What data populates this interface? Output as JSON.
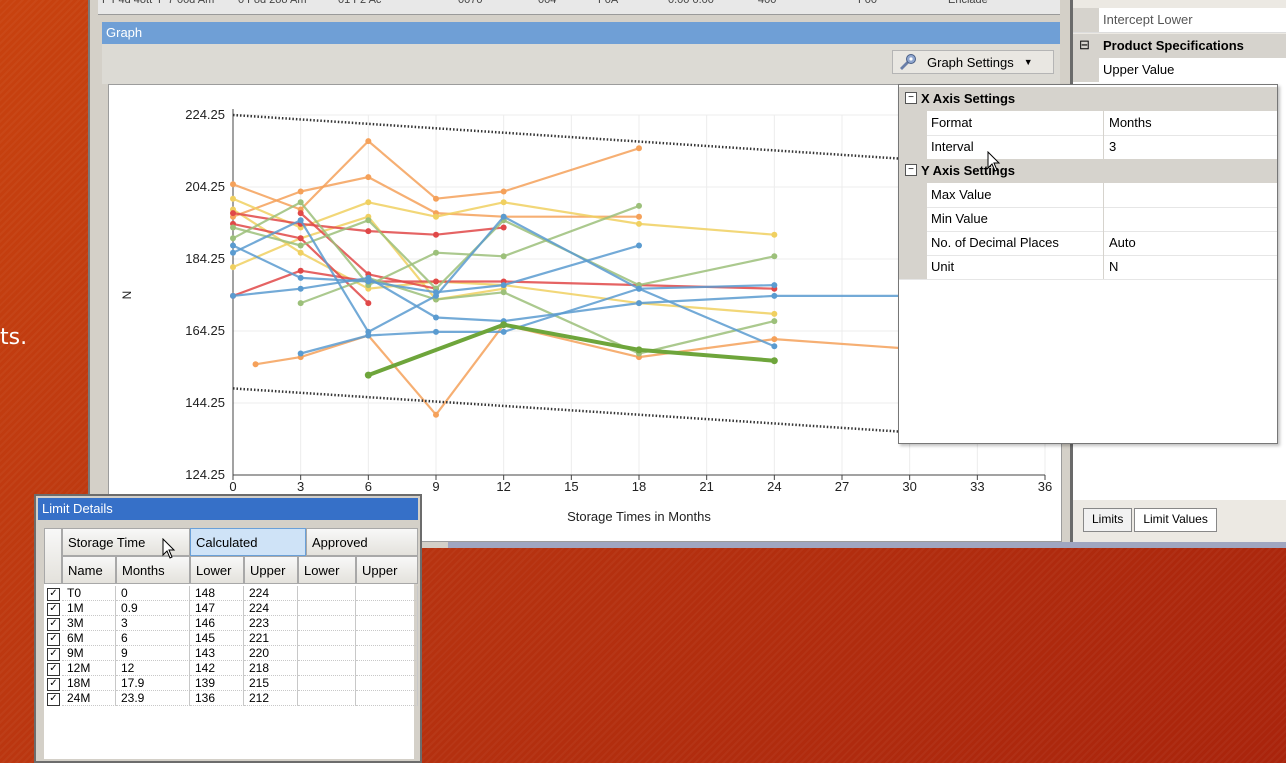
{
  "slide": {
    "fragment_text": "ts."
  },
  "graph_window": {
    "top_strip": [
      "F F4d 4ott",
      "F 7 00d Am",
      "0 Fod 2oo Am",
      "01 F2 Ac",
      "0070",
      "004",
      "F0A",
      "0.00 0.00",
      "400",
      "F00",
      "Enclade"
    ],
    "title": "Graph",
    "settings_button": {
      "label": "Graph Settings",
      "icon": "settings-gear-icon",
      "arrow": "dropdown-arrow-icon"
    }
  },
  "right_panel": {
    "items": [
      {
        "type": "prop",
        "label": "Intercept Lower"
      },
      {
        "type": "category",
        "label": "Product Specifications",
        "toggle": "⊟"
      },
      {
        "type": "prop",
        "label": "Upper Value"
      }
    ],
    "tabs": [
      "Limits",
      "Limit Values"
    ]
  },
  "graph_settings_popup": {
    "sections": [
      {
        "title": "X Axis Settings",
        "toggle": "⊟",
        "props": [
          {
            "key": "Format",
            "value": "Months"
          },
          {
            "key": "Interval",
            "value": "3"
          }
        ]
      },
      {
        "title": "Y Axis Settings",
        "toggle": "⊟",
        "props": [
          {
            "key": "Max Value",
            "value": ""
          },
          {
            "key": "Min Value",
            "value": ""
          },
          {
            "key": "No. of Decimal Places",
            "value": "Auto"
          },
          {
            "key": "Unit",
            "value": "N"
          }
        ]
      }
    ]
  },
  "chart_data": {
    "type": "line",
    "xlabel": "Storage Times in Months",
    "ylabel": "N",
    "xlim": [
      0,
      36
    ],
    "ylim": [
      124.25,
      224.25
    ],
    "xticks": [
      "0",
      "3",
      "6",
      "9",
      "12",
      "15",
      "18",
      "21",
      "24",
      "27",
      "30",
      "33",
      "36"
    ],
    "yticks": [
      "124.25",
      "144.25",
      "164.25",
      "184.25",
      "204.25",
      "224.25"
    ],
    "grid": true,
    "limits": {
      "upper": {
        "x": [
          0,
          36
        ],
        "y": [
          224.25,
          209.5
        ]
      },
      "lower": {
        "x": [
          0,
          36
        ],
        "y": [
          148.3,
          133.7
        ]
      }
    },
    "series": [
      {
        "color": "#f5a15a",
        "x": [
          0,
          3,
          6,
          9,
          12,
          18
        ],
        "y": [
          205,
          198,
          217,
          201,
          203,
          215
        ]
      },
      {
        "color": "#f5a15a",
        "x": [
          0,
          3,
          6,
          9,
          12,
          18
        ],
        "y": [
          196,
          203,
          207,
          197,
          196,
          196
        ]
      },
      {
        "color": "#f5a15a",
        "x": [
          1,
          3,
          6,
          9,
          12,
          18,
          24,
          33
        ],
        "y": [
          155,
          157,
          163,
          141,
          166,
          157,
          162,
          158
        ]
      },
      {
        "color": "#f0d060",
        "x": [
          0,
          3,
          6,
          9,
          12,
          18,
          24
        ],
        "y": [
          201,
          193,
          200,
          196,
          200,
          194,
          191
        ]
      },
      {
        "color": "#f0d060",
        "x": [
          0,
          3,
          6,
          9,
          12,
          18,
          24
        ],
        "y": [
          198,
          186,
          176,
          178,
          177,
          172,
          169
        ]
      },
      {
        "color": "#f0d060",
        "x": [
          0,
          3,
          6,
          9,
          12
        ],
        "y": [
          182,
          190,
          196,
          173,
          176
        ]
      },
      {
        "color": "#e04848",
        "x": [
          0,
          3,
          6,
          9,
          12
        ],
        "y": [
          197,
          194,
          192,
          191,
          193
        ]
      },
      {
        "color": "#e04848",
        "x": [
          0,
          3,
          6
        ],
        "y": [
          194,
          190,
          172
        ]
      },
      {
        "color": "#e04848",
        "x": [
          0,
          3,
          6,
          9,
          12,
          18,
          24
        ],
        "y": [
          174,
          181,
          178,
          178,
          178,
          177,
          176
        ]
      },
      {
        "color": "#e04848",
        "x": [
          3,
          6,
          9
        ],
        "y": [
          197,
          180,
          176
        ]
      },
      {
        "color": "#9cc07a",
        "x": [
          0,
          3,
          6,
          9,
          12,
          18,
          24
        ],
        "y": [
          193,
          188,
          195,
          176,
          195,
          177,
          185
        ]
      },
      {
        "color": "#9cc07a",
        "x": [
          0,
          3,
          6,
          9,
          12,
          18
        ],
        "y": [
          190,
          200,
          177,
          186,
          185,
          199
        ]
      },
      {
        "color": "#9cc07a",
        "x": [
          3,
          6,
          9,
          12,
          18,
          24
        ],
        "y": [
          172,
          179,
          173,
          175,
          158,
          167
        ]
      },
      {
        "color": "#5a9bd0",
        "x": [
          0,
          3,
          6,
          9,
          12,
          18,
          24
        ],
        "y": [
          186,
          195,
          164,
          174,
          196,
          176,
          177
        ]
      },
      {
        "color": "#5a9bd0",
        "x": [
          0,
          3,
          6,
          9,
          12,
          18,
          24,
          33
        ],
        "y": [
          174,
          176,
          179,
          168,
          167,
          172,
          174,
          174
        ]
      },
      {
        "color": "#5a9bd0",
        "x": [
          0,
          3,
          6,
          9,
          12,
          18
        ],
        "y": [
          188,
          179,
          178,
          175,
          177,
          188
        ]
      },
      {
        "color": "#5a9bd0",
        "x": [
          3,
          6,
          9,
          12,
          18,
          24
        ],
        "y": [
          158,
          163,
          164,
          164,
          176,
          160
        ]
      },
      {
        "color": "#6ea53b",
        "width": 4,
        "x": [
          6,
          12,
          18,
          24
        ],
        "y": [
          152,
          166,
          159,
          156
        ]
      }
    ]
  },
  "limit_details": {
    "title": "Limit Details",
    "group_headers": [
      "Storage Time",
      "Calculated",
      "Approved"
    ],
    "columns": [
      "Name",
      "Months",
      "Lower",
      "Upper",
      "Lower",
      "Upper"
    ],
    "rows": [
      {
        "checked": true,
        "name": "T0",
        "months": "0",
        "calc_lower": "148",
        "calc_upper": "224",
        "appr_lower": "",
        "appr_upper": ""
      },
      {
        "checked": true,
        "name": "1M",
        "months": "0.9",
        "calc_lower": "147",
        "calc_upper": "224",
        "appr_lower": "",
        "appr_upper": ""
      },
      {
        "checked": true,
        "name": "3M",
        "months": "3",
        "calc_lower": "146",
        "calc_upper": "223",
        "appr_lower": "",
        "appr_upper": ""
      },
      {
        "checked": true,
        "name": "6M",
        "months": "6",
        "calc_lower": "145",
        "calc_upper": "221",
        "appr_lower": "",
        "appr_upper": ""
      },
      {
        "checked": true,
        "name": "9M",
        "months": "9",
        "calc_lower": "143",
        "calc_upper": "220",
        "appr_lower": "",
        "appr_upper": ""
      },
      {
        "checked": true,
        "name": "12M",
        "months": "12",
        "calc_lower": "142",
        "calc_upper": "218",
        "appr_lower": "",
        "appr_upper": ""
      },
      {
        "checked": true,
        "name": "18M",
        "months": "17.9",
        "calc_lower": "139",
        "calc_upper": "215",
        "appr_lower": "",
        "appr_upper": ""
      },
      {
        "checked": true,
        "name": "24M",
        "months": "23.9",
        "calc_lower": "136",
        "calc_upper": "212",
        "appr_lower": "",
        "appr_upper": ""
      }
    ]
  }
}
